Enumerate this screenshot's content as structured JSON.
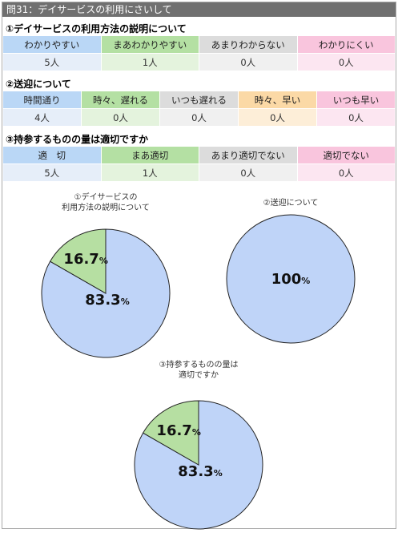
{
  "page_title": "問31：デイサービスの利用にさいして",
  "colors": {
    "blue_head": "#bad7f6",
    "blue_val": "#e6eef9",
    "green_head": "#b4e0a3",
    "green_val": "#e4f3dd",
    "gray_head": "#dcdcdc",
    "gray_val": "#f0f0f0",
    "pink_head": "#f9c5dd",
    "pink_val": "#fce6f1",
    "orange_head": "#fbd9a6",
    "orange_val": "#fdeed8",
    "pie_blue": "#bfd4f8",
    "pie_green": "#b6dfa2"
  },
  "sections": [
    {
      "title": "①デイサービスの利用方法の説明について",
      "headers": [
        "わかりやすい",
        "まあわかりやすい",
        "あまりわからない",
        "わかりにくい"
      ],
      "values": [
        "5人",
        "1人",
        "0人",
        "0人"
      ],
      "colors": [
        "blue",
        "green",
        "gray",
        "pink"
      ]
    },
    {
      "title": "②送迎について",
      "headers": [
        "時間通り",
        "時々、遅れる",
        "いつも遅れる",
        "時々、早い",
        "いつも早い"
      ],
      "values": [
        "4人",
        "0人",
        "0人",
        "0人",
        "0人"
      ],
      "colors": [
        "blue",
        "green",
        "gray",
        "orange",
        "pink"
      ]
    },
    {
      "title": "③持参するものの量は適切ですか",
      "headers": [
        "適　切",
        "まあ適切",
        "あまり適切でない",
        "適切でない"
      ],
      "values": [
        "5人",
        "1人",
        "0人",
        "0人"
      ],
      "colors": [
        "blue",
        "green",
        "gray",
        "pink"
      ]
    }
  ],
  "chart_data": [
    {
      "type": "pie",
      "title_lines": [
        "①デイサービスの",
        "利用方法の説明について"
      ],
      "slices": [
        {
          "value": 83.3,
          "label": "83.3",
          "color": "pie_blue"
        },
        {
          "value": 16.7,
          "label": "16.7",
          "color": "pie_green"
        }
      ],
      "unit": "%"
    },
    {
      "type": "pie",
      "title_lines": [
        "②送迎について"
      ],
      "slices": [
        {
          "value": 100,
          "label": "100",
          "color": "pie_blue"
        }
      ],
      "unit": "%"
    },
    {
      "type": "pie",
      "title_lines": [
        "③持参するものの量は",
        "適切ですか"
      ],
      "slices": [
        {
          "value": 83.3,
          "label": "83.3",
          "color": "pie_blue"
        },
        {
          "value": 16.7,
          "label": "16.7",
          "color": "pie_green"
        }
      ],
      "unit": "%"
    }
  ]
}
